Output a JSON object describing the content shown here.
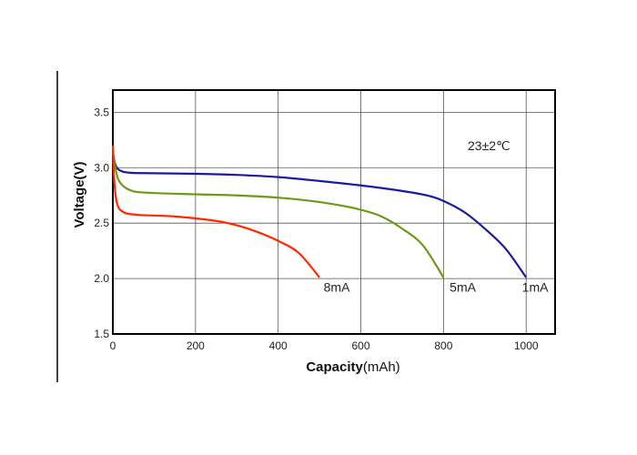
{
  "chart_data": {
    "type": "line",
    "title": "",
    "annotation": "23±2℃",
    "xlabel": {
      "bold": "Capacity",
      "unit": "(mAh)"
    },
    "ylabel": "Voltage(V)",
    "xlim": [
      0,
      1070
    ],
    "ylim": [
      1.5,
      3.7
    ],
    "xticks": [
      0,
      200,
      400,
      600,
      800,
      1000
    ],
    "yticks": [
      1.5,
      2.0,
      2.5,
      3.0,
      3.5
    ],
    "xtick_labels": [
      "0",
      "200",
      "400",
      "600",
      "800",
      "1000"
    ],
    "ytick_labels": [
      "1.5",
      "2.0",
      "2.5",
      "3.0",
      "3.5"
    ],
    "grid": true,
    "series": [
      {
        "name": "1mA",
        "color": "#1a1aa0",
        "points": [
          [
            0,
            3.15
          ],
          [
            5,
            3.04
          ],
          [
            15,
            2.98
          ],
          [
            40,
            2.955
          ],
          [
            100,
            2.95
          ],
          [
            200,
            2.945
          ],
          [
            300,
            2.935
          ],
          [
            400,
            2.915
          ],
          [
            500,
            2.88
          ],
          [
            600,
            2.84
          ],
          [
            700,
            2.79
          ],
          [
            760,
            2.75
          ],
          [
            800,
            2.7
          ],
          [
            850,
            2.6
          ],
          [
            900,
            2.45
          ],
          [
            950,
            2.27
          ],
          [
            1000,
            2.01
          ]
        ]
      },
      {
        "name": "5mA",
        "color": "#6a9a18",
        "points": [
          [
            0,
            3.15
          ],
          [
            5,
            3.02
          ],
          [
            15,
            2.88
          ],
          [
            40,
            2.8
          ],
          [
            80,
            2.775
          ],
          [
            200,
            2.76
          ],
          [
            300,
            2.75
          ],
          [
            400,
            2.73
          ],
          [
            480,
            2.7
          ],
          [
            550,
            2.66
          ],
          [
            600,
            2.62
          ],
          [
            650,
            2.56
          ],
          [
            700,
            2.45
          ],
          [
            750,
            2.3
          ],
          [
            800,
            2.01
          ]
        ]
      },
      {
        "name": "8mA",
        "color": "#ff2800",
        "points": [
          [
            0,
            3.2
          ],
          [
            3,
            2.9
          ],
          [
            10,
            2.68
          ],
          [
            25,
            2.6
          ],
          [
            60,
            2.575
          ],
          [
            150,
            2.56
          ],
          [
            250,
            2.52
          ],
          [
            300,
            2.48
          ],
          [
            350,
            2.42
          ],
          [
            400,
            2.34
          ],
          [
            450,
            2.23
          ],
          [
            500,
            2.01
          ]
        ]
      }
    ],
    "series_labels": [
      {
        "name": "8mA",
        "x": 510,
        "y": 1.88
      },
      {
        "name": "5mA",
        "x": 815,
        "y": 1.88
      },
      {
        "name": "1mA",
        "x": 990,
        "y": 1.88
      }
    ]
  }
}
